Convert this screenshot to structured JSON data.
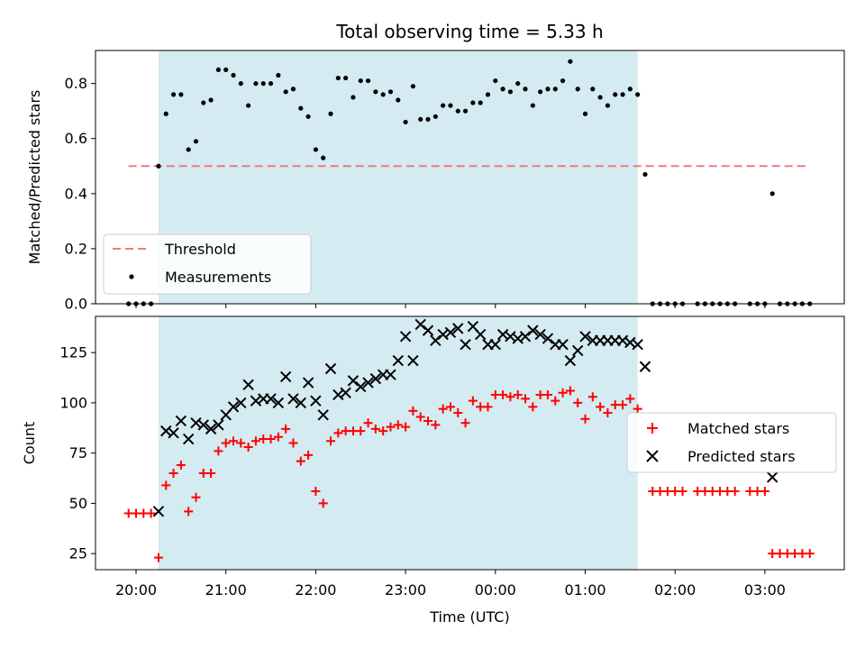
{
  "chart_data": [
    {
      "type": "scatter",
      "title": "Total observing time = 5.33 h",
      "xlabel": "",
      "ylabel": "Matched/Predicted stars",
      "ylim": [
        0,
        0.92
      ],
      "yticks": [
        "0.0",
        "0.2",
        "0.4",
        "0.6",
        "0.8"
      ],
      "ytick_values": [
        0,
        0.2,
        0.4,
        0.6,
        0.8
      ],
      "shaded_span": [
        "20:15",
        "01:35"
      ],
      "shaded_color": "#d4ebf1",
      "threshold": {
        "name": "Threshold",
        "value": 0.5,
        "x_start": "19:55",
        "x_end": "03:30",
        "color": "#f07b7b"
      },
      "legend": {
        "position": "lower-left",
        "entries": [
          "Threshold",
          "Measurements"
        ]
      },
      "series": [
        {
          "name": "Measurements",
          "color": "#000000",
          "points": [
            [
              "19:55",
              0
            ],
            [
              "20:00",
              0
            ],
            [
              "20:05",
              0
            ],
            [
              "20:10",
              0
            ],
            [
              "20:15",
              0.5
            ],
            [
              "20:20",
              0.69
            ],
            [
              "20:25",
              0.76
            ],
            [
              "20:30",
              0.76
            ],
            [
              "20:35",
              0.56
            ],
            [
              "20:40",
              0.59
            ],
            [
              "20:45",
              0.73
            ],
            [
              "20:50",
              0.74
            ],
            [
              "20:55",
              0.85
            ],
            [
              "21:00",
              0.85
            ],
            [
              "21:05",
              0.83
            ],
            [
              "21:10",
              0.8
            ],
            [
              "21:15",
              0.72
            ],
            [
              "21:20",
              0.8
            ],
            [
              "21:25",
              0.8
            ],
            [
              "21:30",
              0.8
            ],
            [
              "21:35",
              0.83
            ],
            [
              "21:40",
              0.77
            ],
            [
              "21:45",
              0.78
            ],
            [
              "21:50",
              0.71
            ],
            [
              "21:55",
              0.68
            ],
            [
              "22:00",
              0.56
            ],
            [
              "22:05",
              0.53
            ],
            [
              "22:10",
              0.69
            ],
            [
              "22:15",
              0.82
            ],
            [
              "22:20",
              0.82
            ],
            [
              "22:25",
              0.75
            ],
            [
              "22:30",
              0.81
            ],
            [
              "22:35",
              0.81
            ],
            [
              "22:40",
              0.77
            ],
            [
              "22:45",
              0.76
            ],
            [
              "22:50",
              0.77
            ],
            [
              "22:55",
              0.74
            ],
            [
              "23:00",
              0.66
            ],
            [
              "23:05",
              0.79
            ],
            [
              "23:10",
              0.67
            ],
            [
              "23:15",
              0.67
            ],
            [
              "23:20",
              0.68
            ],
            [
              "23:25",
              0.72
            ],
            [
              "23:30",
              0.72
            ],
            [
              "23:35",
              0.7
            ],
            [
              "23:40",
              0.7
            ],
            [
              "23:45",
              0.73
            ],
            [
              "23:50",
              0.73
            ],
            [
              "23:55",
              0.76
            ],
            [
              "00:00",
              0.81
            ],
            [
              "00:05",
              0.78
            ],
            [
              "00:10",
              0.77
            ],
            [
              "00:15",
              0.8
            ],
            [
              "00:20",
              0.78
            ],
            [
              "00:25",
              0.72
            ],
            [
              "00:30",
              0.77
            ],
            [
              "00:35",
              0.78
            ],
            [
              "00:40",
              0.78
            ],
            [
              "00:45",
              0.81
            ],
            [
              "00:50",
              0.88
            ],
            [
              "00:55",
              0.78
            ],
            [
              "01:00",
              0.69
            ],
            [
              "01:05",
              0.78
            ],
            [
              "01:10",
              0.75
            ],
            [
              "01:15",
              0.72
            ],
            [
              "01:20",
              0.76
            ],
            [
              "01:25",
              0.76
            ],
            [
              "01:30",
              0.78
            ],
            [
              "01:35",
              0.76
            ],
            [
              "01:40",
              0.47
            ],
            [
              "01:45",
              0
            ],
            [
              "01:50",
              0
            ],
            [
              "01:55",
              0
            ],
            [
              "02:00",
              0
            ],
            [
              "02:05",
              0
            ],
            [
              "02:15",
              0
            ],
            [
              "02:20",
              0
            ],
            [
              "02:25",
              0
            ],
            [
              "02:30",
              0
            ],
            [
              "02:35",
              0
            ],
            [
              "02:40",
              0
            ],
            [
              "02:50",
              0
            ],
            [
              "02:55",
              0
            ],
            [
              "03:00",
              0
            ],
            [
              "03:05",
              0.4
            ],
            [
              "03:10",
              0
            ],
            [
              "03:15",
              0
            ],
            [
              "03:20",
              0
            ],
            [
              "03:25",
              0
            ],
            [
              "03:30",
              0
            ]
          ]
        }
      ]
    },
    {
      "type": "scatter",
      "title": "",
      "xlabel": "Time (UTC)",
      "ylabel": "Count",
      "ylim": [
        17,
        143
      ],
      "yticks": [
        "25",
        "50",
        "75",
        "100",
        "125"
      ],
      "ytick_values": [
        25,
        50,
        75,
        100,
        125
      ],
      "xticks": [
        "20:00",
        "21:00",
        "22:00",
        "23:00",
        "00:00",
        "01:00",
        "02:00",
        "03:00"
      ],
      "shaded_span": [
        "20:15",
        "01:35"
      ],
      "shaded_color": "#d4ebf1",
      "legend": {
        "position": "center-right",
        "entries": [
          "Matched stars",
          "Predicted stars"
        ]
      },
      "series": [
        {
          "name": "Matched stars",
          "color": "#ff0000",
          "marker": "plus",
          "points": [
            [
              "19:55",
              45
            ],
            [
              "20:00",
              45
            ],
            [
              "20:05",
              45
            ],
            [
              "20:10",
              45
            ],
            [
              "20:15",
              23
            ],
            [
              "20:20",
              59
            ],
            [
              "20:25",
              65
            ],
            [
              "20:30",
              69
            ],
            [
              "20:35",
              46
            ],
            [
              "20:40",
              53
            ],
            [
              "20:45",
              65
            ],
            [
              "20:50",
              65
            ],
            [
              "20:55",
              76
            ],
            [
              "21:00",
              80
            ],
            [
              "21:05",
              81
            ],
            [
              "21:10",
              80
            ],
            [
              "21:15",
              78
            ],
            [
              "21:20",
              81
            ],
            [
              "21:25",
              82
            ],
            [
              "21:30",
              82
            ],
            [
              "21:35",
              83
            ],
            [
              "21:40",
              87
            ],
            [
              "21:45",
              80
            ],
            [
              "21:50",
              71
            ],
            [
              "21:55",
              74
            ],
            [
              "22:00",
              56
            ],
            [
              "22:05",
              50
            ],
            [
              "22:10",
              81
            ],
            [
              "22:15",
              85
            ],
            [
              "22:20",
              86
            ],
            [
              "22:25",
              86
            ],
            [
              "22:30",
              86
            ],
            [
              "22:35",
              90
            ],
            [
              "22:40",
              87
            ],
            [
              "22:45",
              86
            ],
            [
              "22:50",
              88
            ],
            [
              "22:55",
              89
            ],
            [
              "23:00",
              88
            ],
            [
              "23:05",
              96
            ],
            [
              "23:10",
              93
            ],
            [
              "23:15",
              91
            ],
            [
              "23:20",
              89
            ],
            [
              "23:25",
              97
            ],
            [
              "23:30",
              98
            ],
            [
              "23:35",
              95
            ],
            [
              "23:40",
              90
            ],
            [
              "23:45",
              101
            ],
            [
              "23:50",
              98
            ],
            [
              "23:55",
              98
            ],
            [
              "00:00",
              104
            ],
            [
              "00:05",
              104
            ],
            [
              "00:10",
              103
            ],
            [
              "00:15",
              104
            ],
            [
              "00:20",
              102
            ],
            [
              "00:25",
              98
            ],
            [
              "00:30",
              104
            ],
            [
              "00:35",
              104
            ],
            [
              "00:40",
              101
            ],
            [
              "00:45",
              105
            ],
            [
              "00:50",
              106
            ],
            [
              "00:55",
              100
            ],
            [
              "01:00",
              92
            ],
            [
              "01:05",
              103
            ],
            [
              "01:10",
              98
            ],
            [
              "01:15",
              95
            ],
            [
              "01:20",
              99
            ],
            [
              "01:25",
              99
            ],
            [
              "01:30",
              102
            ],
            [
              "01:35",
              97
            ],
            [
              "01:45",
              56
            ],
            [
              "01:50",
              56
            ],
            [
              "01:55",
              56
            ],
            [
              "02:00",
              56
            ],
            [
              "02:05",
              56
            ],
            [
              "02:15",
              56
            ],
            [
              "02:20",
              56
            ],
            [
              "02:25",
              56
            ],
            [
              "02:30",
              56
            ],
            [
              "02:35",
              56
            ],
            [
              "02:40",
              56
            ],
            [
              "02:50",
              56
            ],
            [
              "02:55",
              56
            ],
            [
              "03:00",
              56
            ],
            [
              "03:05",
              25
            ],
            [
              "03:10",
              25
            ],
            [
              "03:15",
              25
            ],
            [
              "03:20",
              25
            ],
            [
              "03:25",
              25
            ],
            [
              "03:30",
              25
            ]
          ]
        },
        {
          "name": "Predicted stars",
          "color": "#000000",
          "marker": "x",
          "points": [
            [
              "20:15",
              46
            ],
            [
              "20:20",
              86
            ],
            [
              "20:25",
              85
            ],
            [
              "20:30",
              91
            ],
            [
              "20:35",
              82
            ],
            [
              "20:40",
              90
            ],
            [
              "20:45",
              89
            ],
            [
              "20:50",
              87
            ],
            [
              "20:55",
              89
            ],
            [
              "21:00",
              94
            ],
            [
              "21:05",
              98
            ],
            [
              "21:10",
              100
            ],
            [
              "21:15",
              109
            ],
            [
              "21:20",
              101
            ],
            [
              "21:25",
              102
            ],
            [
              "21:30",
              102
            ],
            [
              "21:35",
              100
            ],
            [
              "21:40",
              113
            ],
            [
              "21:45",
              102
            ],
            [
              "21:50",
              100
            ],
            [
              "21:55",
              110
            ],
            [
              "22:00",
              101
            ],
            [
              "22:05",
              94
            ],
            [
              "22:10",
              117
            ],
            [
              "22:15",
              104
            ],
            [
              "22:20",
              105
            ],
            [
              "22:25",
              111
            ],
            [
              "22:30",
              108
            ],
            [
              "22:35",
              110
            ],
            [
              "22:40",
              112
            ],
            [
              "22:45",
              114
            ],
            [
              "22:50",
              114
            ],
            [
              "22:55",
              121
            ],
            [
              "23:00",
              133
            ],
            [
              "23:05",
              121
            ],
            [
              "23:10",
              139
            ],
            [
              "23:15",
              136
            ],
            [
              "23:20",
              131
            ],
            [
              "23:25",
              134
            ],
            [
              "23:30",
              135
            ],
            [
              "23:35",
              137
            ],
            [
              "23:40",
              129
            ],
            [
              "23:45",
              138
            ],
            [
              "23:50",
              134
            ],
            [
              "23:55",
              129
            ],
            [
              "00:00",
              129
            ],
            [
              "00:05",
              134
            ],
            [
              "00:10",
              133
            ],
            [
              "00:15",
              132
            ],
            [
              "00:20",
              133
            ],
            [
              "00:25",
              136
            ],
            [
              "00:30",
              134
            ],
            [
              "00:35",
              132
            ],
            [
              "00:40",
              129
            ],
            [
              "00:45",
              129
            ],
            [
              "00:50",
              121
            ],
            [
              "00:55",
              126
            ],
            [
              "01:00",
              133
            ],
            [
              "01:05",
              131
            ],
            [
              "01:10",
              131
            ],
            [
              "01:15",
              131
            ],
            [
              "01:20",
              131
            ],
            [
              "01:25",
              131
            ],
            [
              "01:30",
              130
            ],
            [
              "01:35",
              129
            ],
            [
              "01:40",
              118
            ],
            [
              "03:05",
              63
            ]
          ]
        }
      ]
    }
  ]
}
